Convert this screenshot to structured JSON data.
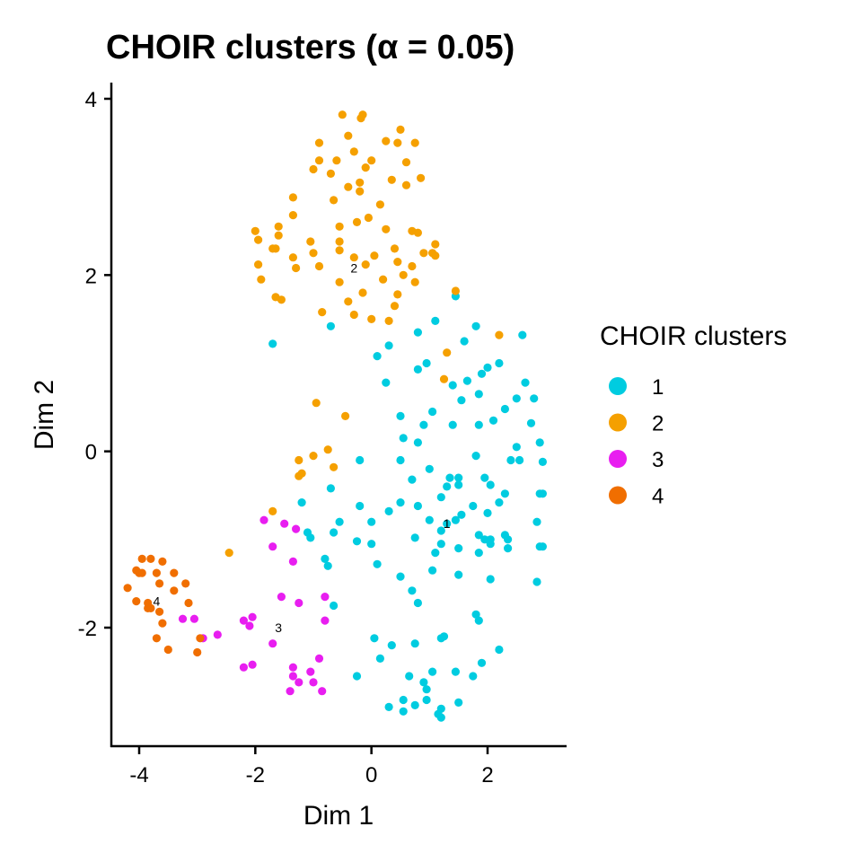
{
  "chart_data": {
    "type": "scatter",
    "title": "CHOIR clusters (α = 0.05)",
    "xlabel": "Dim 1",
    "ylabel": "Dim 2",
    "xlim": [
      -4.5,
      3.3
    ],
    "ylim": [
      -3.35,
      4.2
    ],
    "x_ticks": [
      -4,
      -2,
      0,
      2
    ],
    "y_ticks": [
      -2,
      0,
      2,
      4
    ],
    "x_tick_labels": [
      "-4",
      "-2",
      "0",
      "2"
    ],
    "y_tick_labels": [
      "-2",
      "0",
      "2",
      "4"
    ],
    "grid": false,
    "legend": {
      "title": "CHOIR clusters",
      "placement": "right",
      "entries": [
        "1",
        "2",
        "3",
        "4"
      ]
    },
    "series": [
      {
        "name": "1",
        "color": "#00CCE0",
        "points": [
          [
            -0.7,
            1.42
          ],
          [
            -1.7,
            1.22
          ],
          [
            1.45,
            1.76
          ],
          [
            1.1,
            1.48
          ],
          [
            0.8,
            1.35
          ],
          [
            1.8,
            1.42
          ],
          [
            0.3,
            1.2
          ],
          [
            0.8,
            0.93
          ],
          [
            1.6,
            1.25
          ],
          [
            2.6,
            1.32
          ],
          [
            0.1,
            1.08
          ],
          [
            0.95,
            1.0
          ],
          [
            1.65,
            0.8
          ],
          [
            2.0,
            0.95
          ],
          [
            2.2,
            1.0
          ],
          [
            0.25,
            0.78
          ],
          [
            1.4,
            0.75
          ],
          [
            1.9,
            0.88
          ],
          [
            2.5,
            0.6
          ],
          [
            2.65,
            0.78
          ],
          [
            1.55,
            0.58
          ],
          [
            1.85,
            0.65
          ],
          [
            2.3,
            0.48
          ],
          [
            1.05,
            0.45
          ],
          [
            0.5,
            0.4
          ],
          [
            2.1,
            0.35
          ],
          [
            2.75,
            0.32
          ],
          [
            0.9,
            0.3
          ],
          [
            1.4,
            0.3
          ],
          [
            1.85,
            0.3
          ],
          [
            2.8,
            0.6
          ],
          [
            2.9,
            0.1
          ],
          [
            0.55,
            0.15
          ],
          [
            0.8,
            0.1
          ],
          [
            2.5,
            0.05
          ],
          [
            0.5,
            -0.1
          ],
          [
            1.8,
            -0.05
          ],
          [
            2.4,
            -0.1
          ],
          [
            2.55,
            -0.1
          ],
          [
            2.95,
            -0.12
          ],
          [
            -0.2,
            -0.1
          ],
          [
            1.0,
            -0.2
          ],
          [
            1.35,
            -0.3
          ],
          [
            1.5,
            -0.3
          ],
          [
            1.95,
            -0.3
          ],
          [
            0.7,
            -0.32
          ],
          [
            1.5,
            -0.38
          ],
          [
            2.05,
            -0.38
          ],
          [
            -0.7,
            -0.42
          ],
          [
            1.3,
            -0.4
          ],
          [
            2.3,
            -0.48
          ],
          [
            2.9,
            -0.48
          ],
          [
            1.2,
            -0.52
          ],
          [
            2.95,
            -0.48
          ],
          [
            0.5,
            -0.58
          ],
          [
            -1.2,
            -0.58
          ],
          [
            -0.2,
            -0.62
          ],
          [
            1.75,
            -0.62
          ],
          [
            2.2,
            -0.58
          ],
          [
            0.8,
            -0.62
          ],
          [
            0.3,
            -0.68
          ],
          [
            2.0,
            -0.7
          ],
          [
            1.55,
            -0.72
          ],
          [
            1.0,
            -0.78
          ],
          [
            1.45,
            -0.78
          ],
          [
            0.0,
            -0.8
          ],
          [
            -0.55,
            -0.8
          ],
          [
            1.3,
            -0.82
          ],
          [
            1.2,
            -0.9
          ],
          [
            2.85,
            -0.8
          ],
          [
            -1.1,
            -0.92
          ],
          [
            -0.65,
            -0.92
          ],
          [
            2.3,
            -0.95
          ],
          [
            1.85,
            -0.95
          ],
          [
            0.75,
            -0.98
          ],
          [
            1.95,
            -1.0
          ],
          [
            2.05,
            -1.0
          ],
          [
            2.35,
            -1.0
          ],
          [
            2.05,
            -1.05
          ],
          [
            -1.05,
            -0.98
          ],
          [
            -0.25,
            -1.02
          ],
          [
            0.0,
            -1.05
          ],
          [
            1.2,
            -1.05
          ],
          [
            2.9,
            -1.08
          ],
          [
            2.35,
            -1.1
          ],
          [
            2.95,
            -1.08
          ],
          [
            1.5,
            -1.1
          ],
          [
            1.1,
            -1.15
          ],
          [
            1.85,
            -1.15
          ],
          [
            -0.8,
            -1.22
          ],
          [
            -0.75,
            -1.3
          ],
          [
            0.1,
            -1.28
          ],
          [
            1.05,
            -1.35
          ],
          [
            1.5,
            -1.4
          ],
          [
            0.5,
            -1.42
          ],
          [
            2.05,
            -1.45
          ],
          [
            2.85,
            -1.48
          ],
          [
            0.7,
            -1.58
          ],
          [
            0.8,
            -1.72
          ],
          [
            -0.65,
            -1.75
          ],
          [
            1.8,
            -1.85
          ],
          [
            1.85,
            -1.92
          ],
          [
            1.2,
            -2.12
          ],
          [
            0.05,
            -2.12
          ],
          [
            0.75,
            -2.18
          ],
          [
            0.35,
            -2.2
          ],
          [
            1.25,
            -2.1
          ],
          [
            2.2,
            -2.25
          ],
          [
            0.15,
            -2.35
          ],
          [
            1.9,
            -2.4
          ],
          [
            1.05,
            -2.5
          ],
          [
            1.45,
            -2.5
          ],
          [
            -0.25,
            -2.55
          ],
          [
            0.65,
            -2.55
          ],
          [
            1.75,
            -2.55
          ],
          [
            0.9,
            -2.62
          ],
          [
            0.95,
            -2.7
          ],
          [
            0.55,
            -2.82
          ],
          [
            0.95,
            -2.82
          ],
          [
            0.75,
            -2.88
          ],
          [
            0.3,
            -2.9
          ],
          [
            1.2,
            -2.92
          ],
          [
            1.5,
            -2.85
          ],
          [
            0.55,
            -2.95
          ],
          [
            1.15,
            -2.98
          ],
          [
            1.2,
            -3.02
          ]
        ]
      },
      {
        "name": "2",
        "color": "#F5A000",
        "points": [
          [
            -0.5,
            3.82
          ],
          [
            -0.15,
            3.82
          ],
          [
            -0.18,
            3.78
          ],
          [
            0.5,
            3.65
          ],
          [
            0.45,
            3.5
          ],
          [
            -0.4,
            3.58
          ],
          [
            0.25,
            3.52
          ],
          [
            0.75,
            3.5
          ],
          [
            -0.9,
            3.5
          ],
          [
            -0.3,
            3.4
          ],
          [
            -0.9,
            3.3
          ],
          [
            -0.6,
            3.3
          ],
          [
            0.0,
            3.3
          ],
          [
            0.6,
            3.28
          ],
          [
            -1.0,
            3.2
          ],
          [
            -0.7,
            3.15
          ],
          [
            -0.1,
            3.22
          ],
          [
            0.85,
            3.1
          ],
          [
            0.35,
            3.08
          ],
          [
            -0.2,
            3.05
          ],
          [
            0.6,
            3.02
          ],
          [
            -0.4,
            3.0
          ],
          [
            -0.2,
            2.95
          ],
          [
            -1.35,
            2.88
          ],
          [
            -0.65,
            2.85
          ],
          [
            -1.35,
            2.68
          ],
          [
            0.15,
            2.8
          ],
          [
            -0.25,
            2.6
          ],
          [
            -0.05,
            2.65
          ],
          [
            -1.6,
            2.55
          ],
          [
            -2.0,
            2.5
          ],
          [
            -0.55,
            2.55
          ],
          [
            0.25,
            2.52
          ],
          [
            0.7,
            2.5
          ],
          [
            0.8,
            2.48
          ],
          [
            -1.6,
            2.45
          ],
          [
            -1.95,
            2.4
          ],
          [
            -1.05,
            2.38
          ],
          [
            -0.55,
            2.38
          ],
          [
            1.1,
            2.35
          ],
          [
            -1.65,
            2.3
          ],
          [
            -1.7,
            2.3
          ],
          [
            0.4,
            2.3
          ],
          [
            0.9,
            2.25
          ],
          [
            1.05,
            2.25
          ],
          [
            1.1,
            2.22
          ],
          [
            -1.0,
            2.25
          ],
          [
            -0.55,
            2.28
          ],
          [
            0.05,
            2.22
          ],
          [
            -1.35,
            2.2
          ],
          [
            -0.3,
            2.2
          ],
          [
            0.45,
            2.15
          ],
          [
            -1.95,
            2.12
          ],
          [
            -0.9,
            2.1
          ],
          [
            -1.3,
            2.08
          ],
          [
            -0.1,
            2.12
          ],
          [
            0.7,
            2.1
          ],
          [
            0.55,
            2.0
          ],
          [
            -1.9,
            1.95
          ],
          [
            -0.55,
            1.92
          ],
          [
            0.2,
            1.95
          ],
          [
            0.75,
            1.92
          ],
          [
            1.45,
            1.82
          ],
          [
            -0.15,
            1.8
          ],
          [
            0.45,
            1.78
          ],
          [
            -1.65,
            1.75
          ],
          [
            -1.55,
            1.72
          ],
          [
            -0.4,
            1.7
          ],
          [
            0.4,
            1.65
          ],
          [
            -0.85,
            1.58
          ],
          [
            -0.3,
            1.55
          ],
          [
            0.0,
            1.5
          ],
          [
            0.3,
            1.48
          ],
          [
            2.2,
            1.32
          ],
          [
            1.3,
            1.12
          ],
          [
            1.25,
            0.82
          ],
          [
            -0.95,
            0.55
          ],
          [
            -0.45,
            0.4
          ],
          [
            -0.75,
            0.02
          ],
          [
            -1.0,
            -0.05
          ],
          [
            -1.25,
            -0.1
          ],
          [
            -0.65,
            -0.18
          ],
          [
            -1.2,
            -0.25
          ],
          [
            -1.25,
            -0.28
          ],
          [
            -1.7,
            -0.68
          ],
          [
            -2.45,
            -1.15
          ]
        ]
      },
      {
        "name": "3",
        "color": "#E81EF0",
        "points": [
          [
            -1.85,
            -0.78
          ],
          [
            -1.5,
            -0.82
          ],
          [
            -1.3,
            -0.88
          ],
          [
            -1.7,
            -1.08
          ],
          [
            -1.35,
            -1.25
          ],
          [
            -1.55,
            -1.65
          ],
          [
            -0.8,
            -1.65
          ],
          [
            -1.25,
            -1.72
          ],
          [
            -3.25,
            -1.9
          ],
          [
            -3.05,
            -1.9
          ],
          [
            -2.05,
            -1.88
          ],
          [
            -2.2,
            -1.92
          ],
          [
            -0.8,
            -1.92
          ],
          [
            -2.1,
            -1.98
          ],
          [
            -1.7,
            -2.18
          ],
          [
            -2.65,
            -2.08
          ],
          [
            -2.9,
            -2.12
          ],
          [
            -0.9,
            -2.35
          ],
          [
            -1.35,
            -2.45
          ],
          [
            -1.05,
            -2.5
          ],
          [
            -2.05,
            -2.42
          ],
          [
            -2.2,
            -2.45
          ],
          [
            -1.35,
            -2.55
          ],
          [
            -1.25,
            -2.62
          ],
          [
            -1.0,
            -2.62
          ],
          [
            -1.4,
            -2.72
          ],
          [
            -0.85,
            -2.72
          ]
        ]
      },
      {
        "name": "4",
        "color": "#F06E00",
        "points": [
          [
            -3.95,
            -1.22
          ],
          [
            -3.8,
            -1.22
          ],
          [
            -3.6,
            -1.25
          ],
          [
            -4.05,
            -1.35
          ],
          [
            -3.95,
            -1.38
          ],
          [
            -4.0,
            -1.38
          ],
          [
            -3.7,
            -1.38
          ],
          [
            -3.4,
            -1.38
          ],
          [
            -3.65,
            -1.5
          ],
          [
            -3.2,
            -1.5
          ],
          [
            -4.2,
            -1.55
          ],
          [
            -3.4,
            -1.58
          ],
          [
            -4.05,
            -1.7
          ],
          [
            -3.85,
            -1.72
          ],
          [
            -3.15,
            -1.72
          ],
          [
            -3.85,
            -1.78
          ],
          [
            -3.8,
            -1.78
          ],
          [
            -3.65,
            -1.82
          ],
          [
            -3.6,
            -1.95
          ],
          [
            -2.95,
            -2.12
          ],
          [
            -3.7,
            -2.12
          ],
          [
            -3.5,
            -2.25
          ],
          [
            -3.0,
            -2.28
          ]
        ]
      }
    ],
    "annotations": [
      {
        "text": "2",
        "x": -0.3,
        "y": 2.08
      },
      {
        "text": "1",
        "x": 1.3,
        "y": -0.82
      },
      {
        "text": "4",
        "x": -3.7,
        "y": -1.7
      },
      {
        "text": "3",
        "x": -1.6,
        "y": -2.0
      }
    ]
  }
}
